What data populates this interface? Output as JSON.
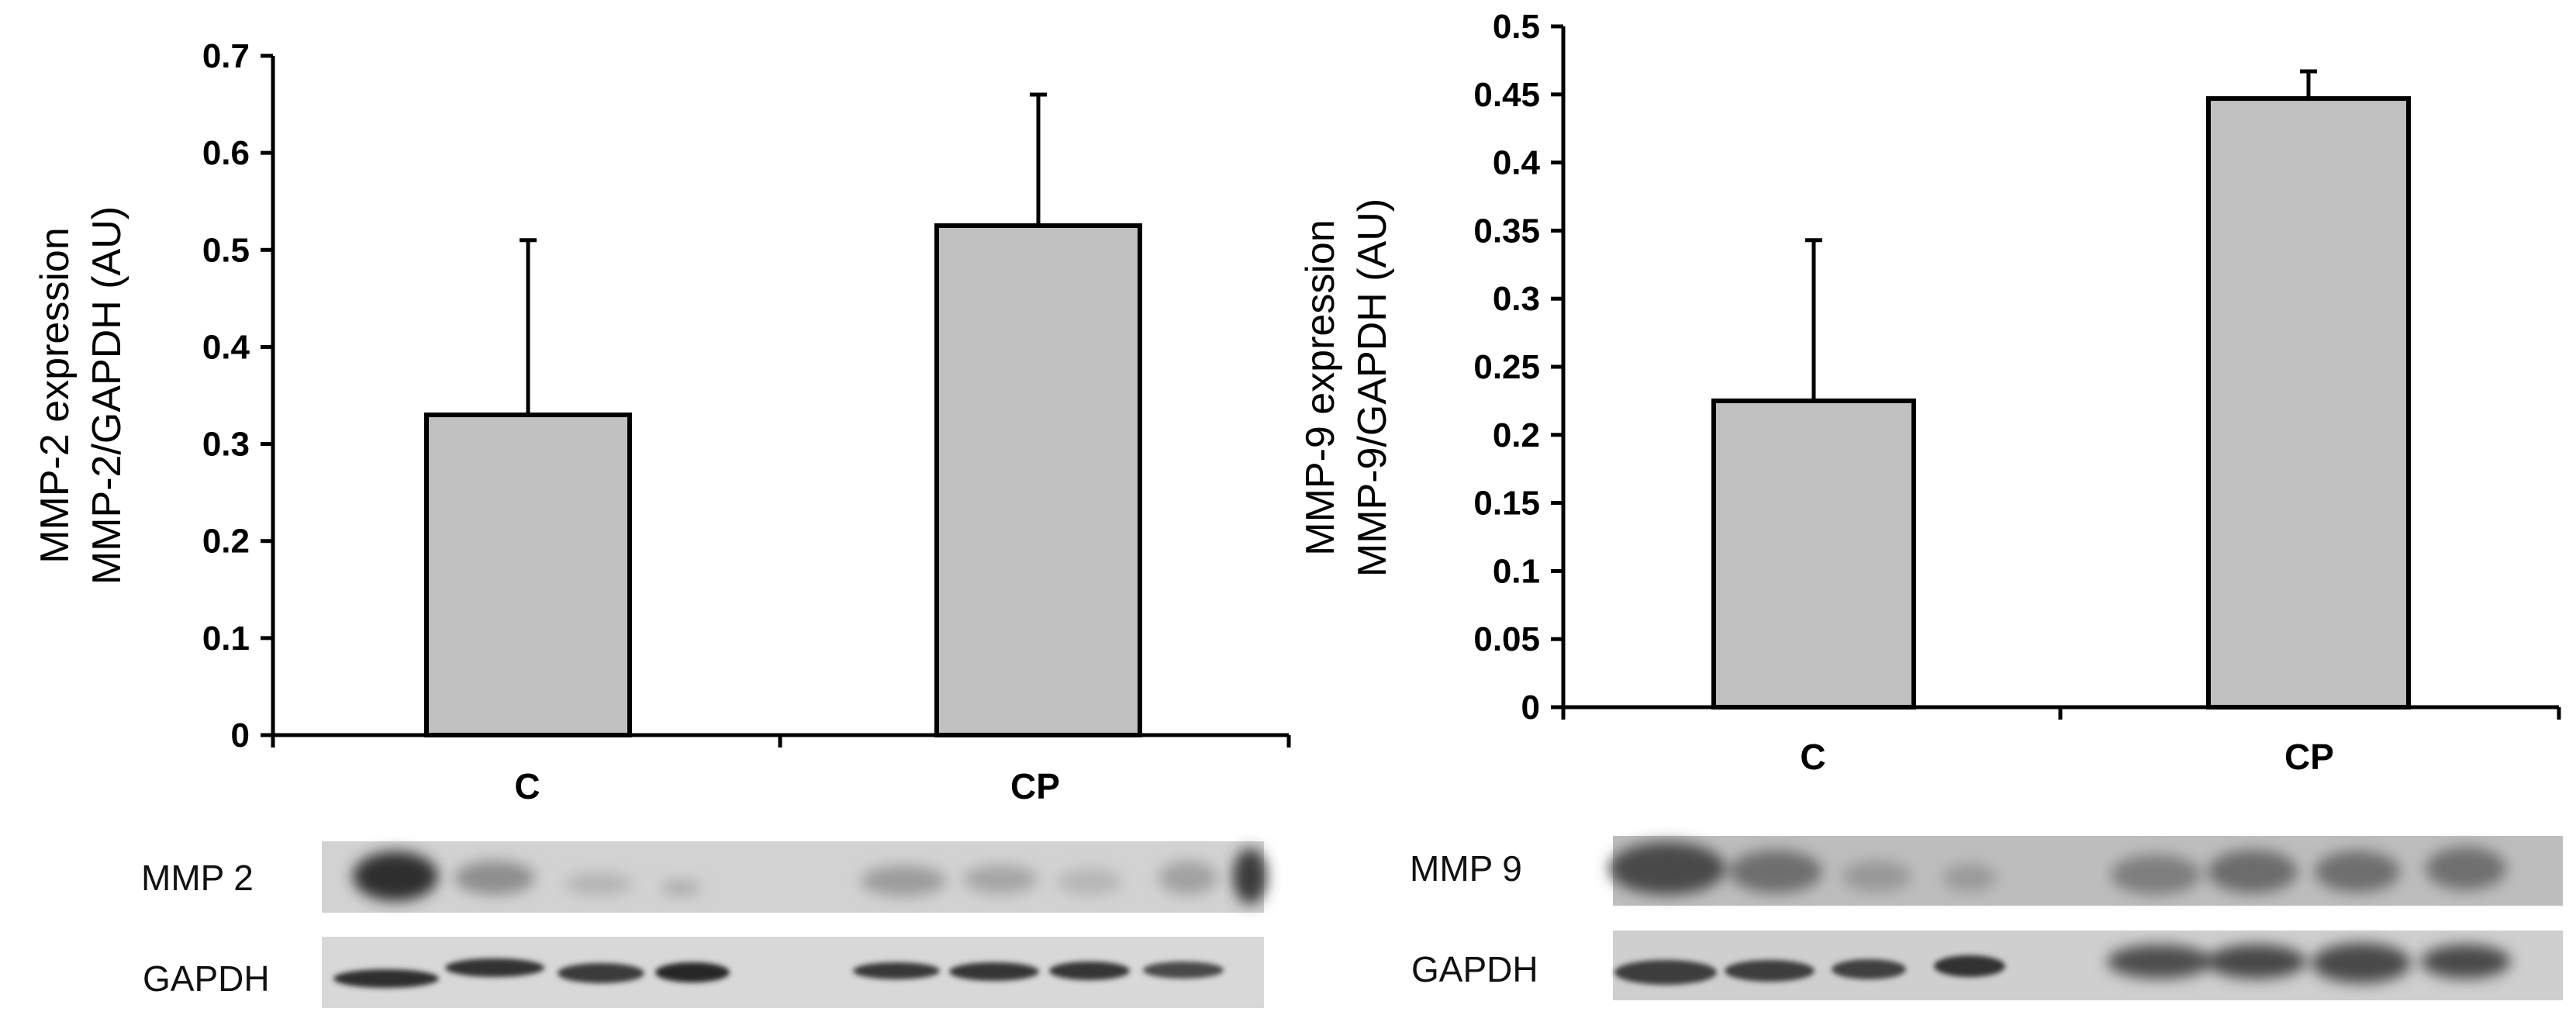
{
  "chart_data": [
    {
      "type": "bar",
      "categories": [
        "C",
        "CP"
      ],
      "values": [
        0.33,
        0.525
      ],
      "error_bars": [
        0.18,
        0.135
      ],
      "ylabel_lines": [
        "MMP-2 expression",
        "MMP-2/GAPDH (AU)"
      ],
      "ylim": [
        0,
        0.7
      ],
      "yticks": [
        "0",
        "0.1",
        "0.2",
        "0.3",
        "0.4",
        "0.5",
        "0.6",
        "0.7"
      ],
      "bar_color": "#c0c0c0",
      "grid": false,
      "blot_labels": [
        "MMP 2",
        "GAPDH"
      ]
    },
    {
      "type": "bar",
      "categories": [
        "C",
        "CP"
      ],
      "values": [
        0.225,
        0.447
      ],
      "error_bars": [
        0.118,
        0.02
      ],
      "ylabel_lines": [
        "MMP-9 expression",
        "MMP-9/GAPDH (AU)"
      ],
      "ylim": [
        0,
        0.5
      ],
      "yticks": [
        "0",
        "0.05",
        "0.1",
        "0.15",
        "0.2",
        "0.25",
        "0.3",
        "0.35",
        "0.4",
        "0.45",
        "0.5"
      ],
      "bar_color": "#c0c0c0",
      "grid": false,
      "blot_labels": [
        "MMP 9",
        "GAPDH"
      ]
    }
  ]
}
